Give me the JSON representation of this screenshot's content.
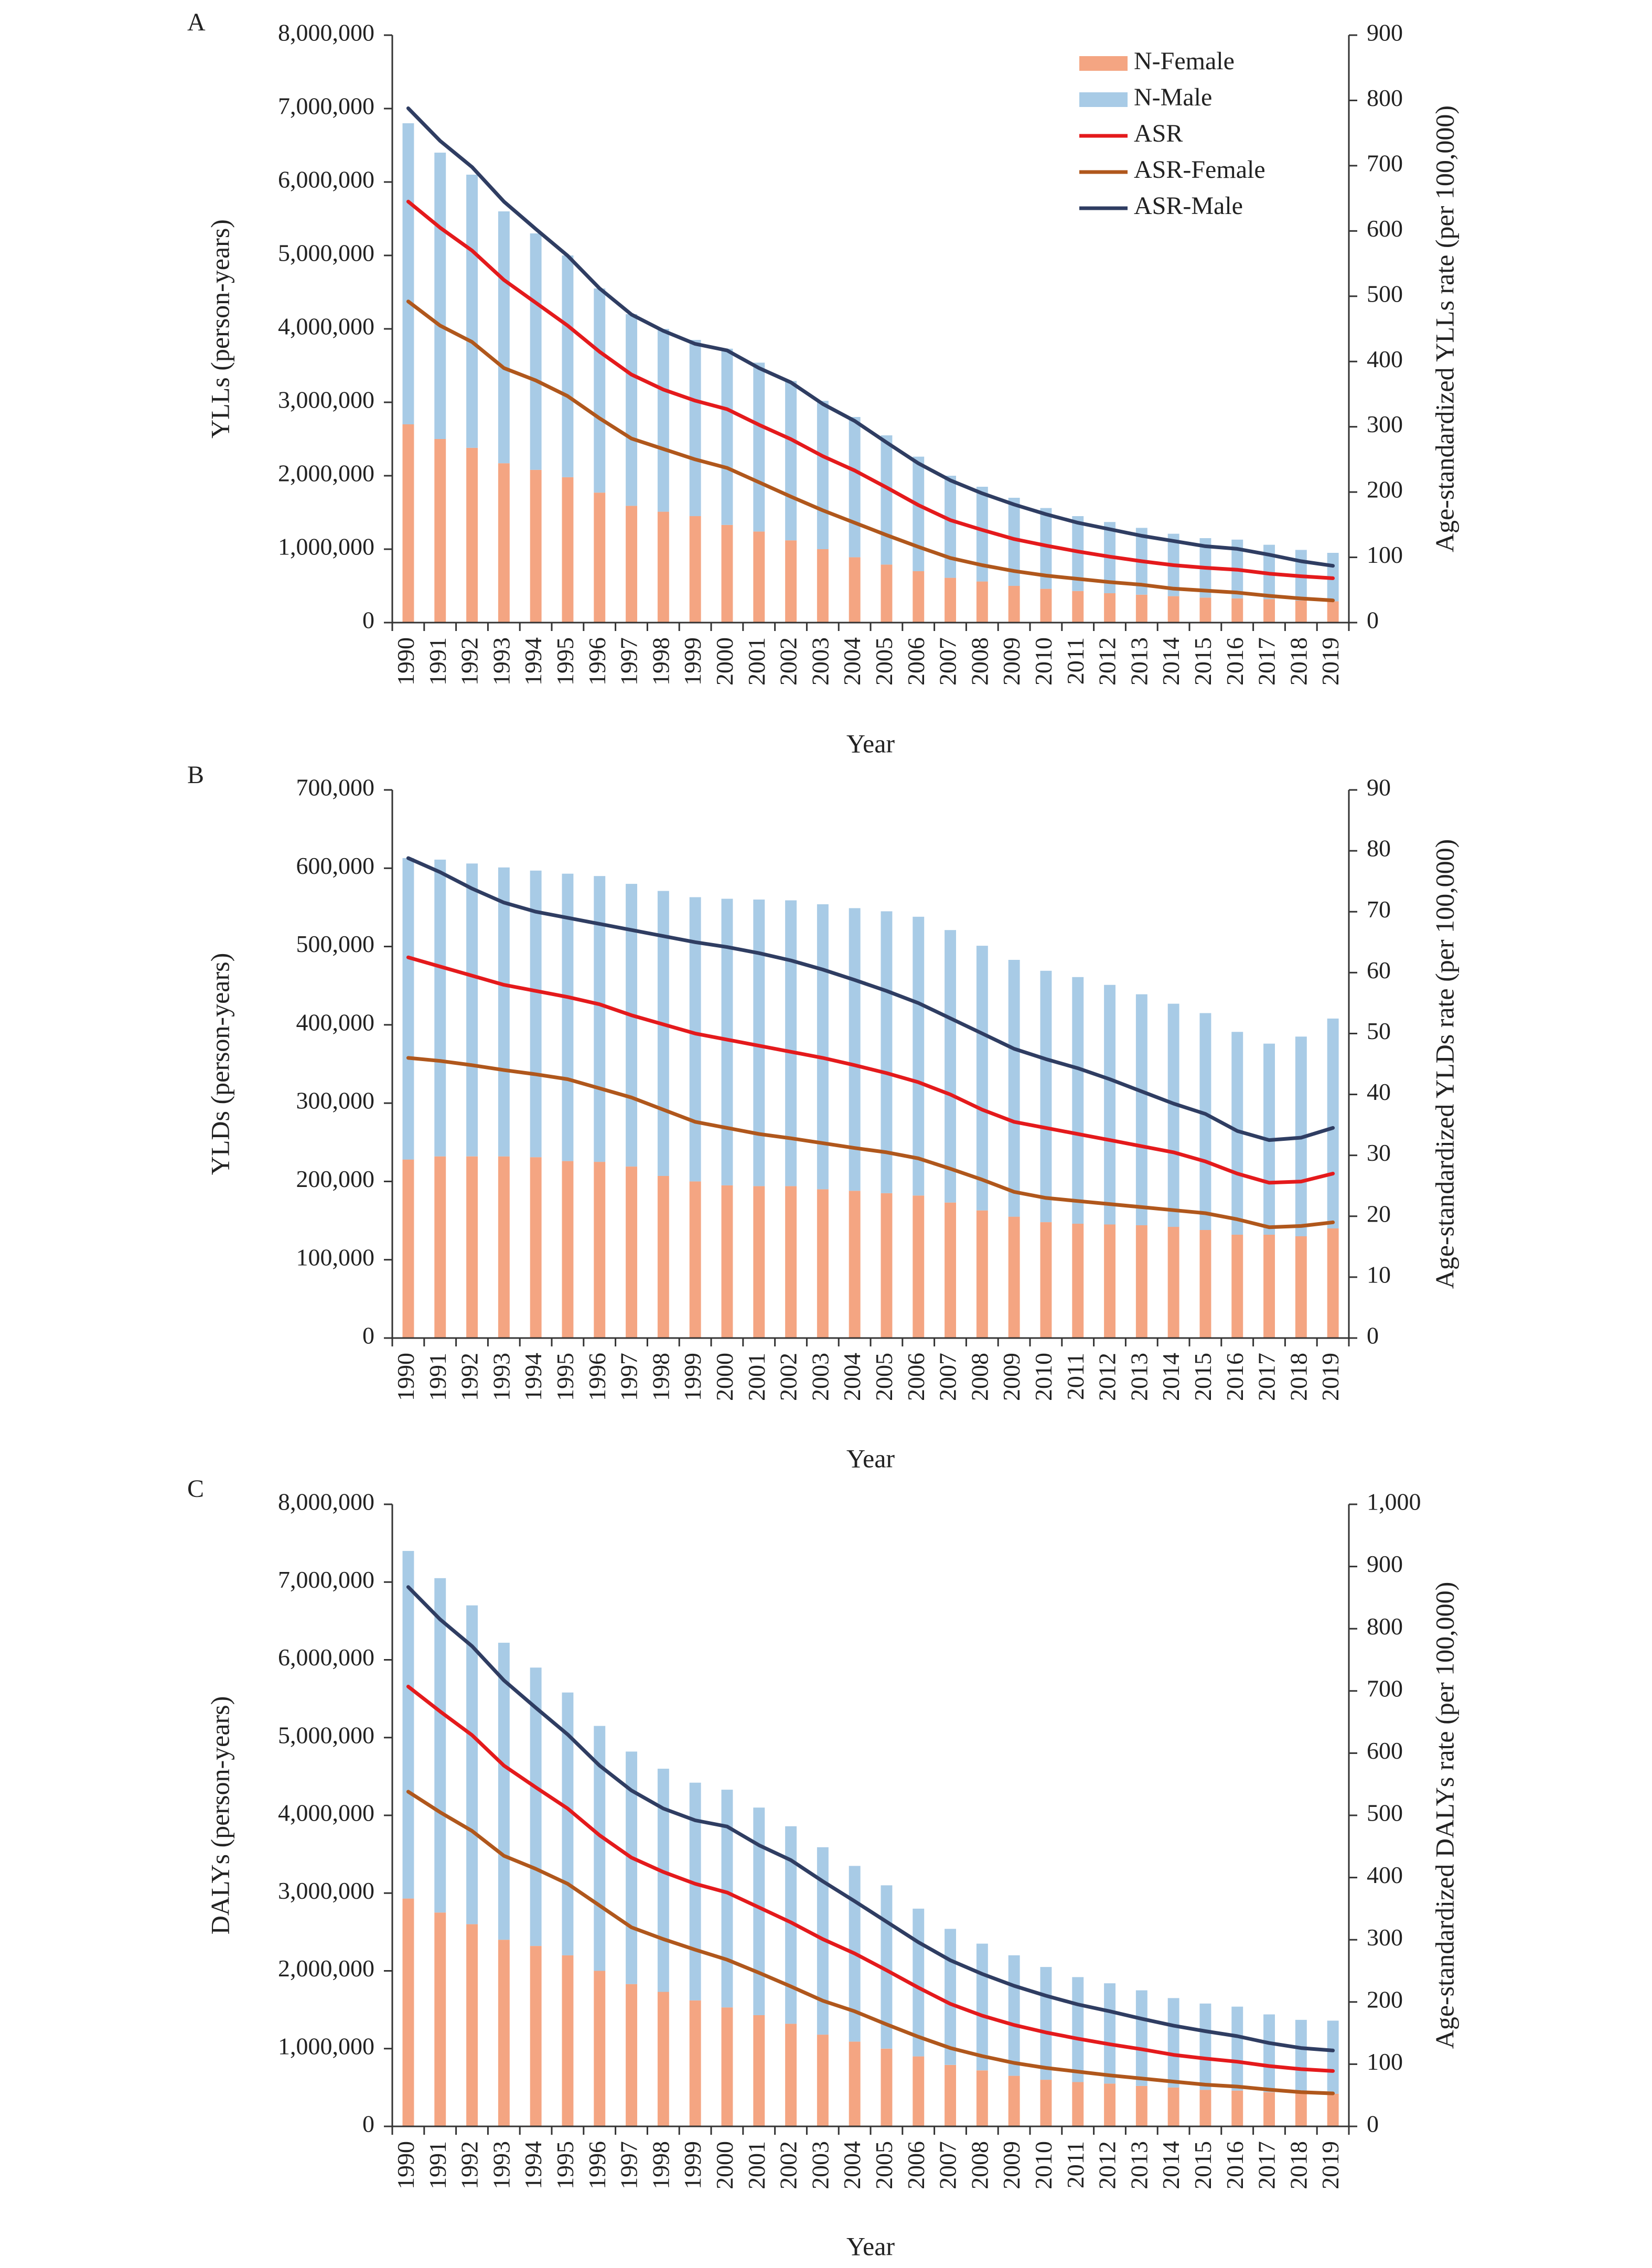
{
  "colors": {
    "female_bar": "#F4A582",
    "male_bar": "#A8CBE6",
    "asr": "#E41A1C",
    "asr_female": "#B0571C",
    "asr_male": "#2F3D62",
    "axis": "#333333",
    "text": "#222222"
  },
  "legend": {
    "position": "top-right of panel A",
    "items": [
      {
        "key": "female_bar",
        "label": "N-Female",
        "kind": "bar"
      },
      {
        "key": "male_bar",
        "label": "N-Male",
        "kind": "bar"
      },
      {
        "key": "asr",
        "label": "ASR",
        "kind": "line"
      },
      {
        "key": "asr_female",
        "label": "ASR-Female",
        "kind": "line"
      },
      {
        "key": "asr_male",
        "label": "ASR-Male",
        "kind": "line"
      }
    ]
  },
  "chart_data": [
    {
      "panel": "A",
      "type": "bar",
      "stacked": true,
      "xlabel": "Year",
      "ylabel": "YLLs (person-years)",
      "y2label": "Age-standardized YLLs rate (per 100,000)",
      "ylim": [
        0,
        8000000
      ],
      "y2lim": [
        0,
        900
      ],
      "yticks": [
        0,
        1000000,
        2000000,
        3000000,
        4000000,
        5000000,
        6000000,
        7000000,
        8000000
      ],
      "yticklabels": [
        "0",
        "1,000,000",
        "2,000,000",
        "3,000,000",
        "4,000,000",
        "5,000,000",
        "6,000,000",
        "7,000,000",
        "8,000,000"
      ],
      "y2ticks": [
        0,
        100,
        200,
        300,
        400,
        500,
        600,
        700,
        800,
        900
      ],
      "y2ticklabels": [
        "0",
        "100",
        "200",
        "300",
        "400",
        "500",
        "600",
        "700",
        "800",
        "900"
      ],
      "categories": [
        "1990",
        "1991",
        "1992",
        "1993",
        "1994",
        "1995",
        "1996",
        "1997",
        "1998",
        "1999",
        "2000",
        "2001",
        "2002",
        "2003",
        "2004",
        "2005",
        "2006",
        "2007",
        "2008",
        "2009",
        "2010",
        "2011",
        "2012",
        "2013",
        "2014",
        "2015",
        "2016",
        "2017",
        "2018",
        "2019"
      ],
      "series": [
        {
          "name": "N-Female",
          "kind": "bar",
          "color_key": "female_bar",
          "values": [
            2700000,
            2500000,
            2380000,
            2170000,
            2080000,
            1980000,
            1770000,
            1590000,
            1510000,
            1450000,
            1330000,
            1240000,
            1120000,
            1000000,
            890000,
            790000,
            700000,
            610000,
            560000,
            500000,
            460000,
            430000,
            400000,
            380000,
            360000,
            340000,
            330000,
            320000,
            300000,
            290000
          ]
        },
        {
          "name": "N-Male",
          "kind": "bar",
          "color_key": "male_bar",
          "values": [
            4100000,
            3900000,
            3720000,
            3430000,
            3220000,
            3020000,
            2780000,
            2610000,
            2490000,
            2400000,
            2400000,
            2300000,
            2170000,
            2020000,
            1910000,
            1760000,
            1560000,
            1390000,
            1290000,
            1200000,
            1100000,
            1020000,
            970000,
            910000,
            850000,
            810000,
            800000,
            740000,
            690000,
            660000
          ]
        },
        {
          "name": "ASR",
          "kind": "line",
          "axis": "y2",
          "color_key": "asr",
          "values": [
            645,
            605,
            570,
            525,
            490,
            455,
            415,
            380,
            357,
            340,
            327,
            303,
            281,
            255,
            233,
            207,
            180,
            157,
            142,
            128,
            118,
            109,
            101,
            94,
            88,
            84,
            81,
            75,
            71,
            68
          ]
        },
        {
          "name": "ASR-Female",
          "kind": "line",
          "axis": "y2",
          "color_key": "asr_female",
          "values": [
            492,
            455,
            430,
            390,
            371,
            347,
            313,
            282,
            266,
            250,
            237,
            215,
            193,
            172,
            153,
            134,
            116,
            99,
            88,
            79,
            72,
            67,
            62,
            58,
            52,
            49,
            46,
            41,
            37,
            34
          ]
        },
        {
          "name": "ASR-Male",
          "kind": "line",
          "axis": "y2",
          "color_key": "asr_male",
          "values": [
            788,
            738,
            698,
            645,
            603,
            562,
            512,
            472,
            447,
            427,
            417,
            390,
            368,
            335,
            309,
            276,
            244,
            218,
            198,
            181,
            166,
            153,
            143,
            133,
            125,
            117,
            113,
            104,
            94,
            87
          ]
        }
      ]
    },
    {
      "panel": "B",
      "type": "bar",
      "stacked": true,
      "xlabel": "Year",
      "ylabel": "YLDs (person-years)",
      "y2label": "Age-standardized YLDs rate (per 100,000)",
      "ylim": [
        0,
        700000
      ],
      "y2lim": [
        0,
        90
      ],
      "yticks": [
        0,
        100000,
        200000,
        300000,
        400000,
        500000,
        600000,
        700000
      ],
      "yticklabels": [
        "0",
        "100,000",
        "200,000",
        "300,000",
        "400,000",
        "500,000",
        "600,000",
        "700,000"
      ],
      "y2ticks": [
        0,
        10,
        20,
        30,
        40,
        50,
        60,
        70,
        80,
        90
      ],
      "y2ticklabels": [
        "0",
        "10",
        "20",
        "30",
        "40",
        "50",
        "60",
        "70",
        "80",
        "90"
      ],
      "categories": [
        "1990",
        "1991",
        "1992",
        "1993",
        "1994",
        "1995",
        "1996",
        "1997",
        "1998",
        "1999",
        "2000",
        "2001",
        "2002",
        "2003",
        "2004",
        "2005",
        "2006",
        "2007",
        "2008",
        "2009",
        "2010",
        "2011",
        "2012",
        "2013",
        "2014",
        "2015",
        "2016",
        "2017",
        "2018",
        "2019"
      ],
      "series": [
        {
          "name": "N-Female",
          "kind": "bar",
          "color_key": "female_bar",
          "values": [
            228000,
            232000,
            232000,
            232000,
            231000,
            226000,
            225000,
            219000,
            207000,
            200000,
            195000,
            194000,
            194000,
            190000,
            188000,
            185000,
            182000,
            173000,
            163000,
            155000,
            148000,
            146000,
            145000,
            144000,
            142000,
            138000,
            132000,
            132000,
            130000,
            140000
          ]
        },
        {
          "name": "N-Male",
          "kind": "bar",
          "color_key": "male_bar",
          "values": [
            385000,
            379000,
            374000,
            369000,
            366000,
            367000,
            365000,
            361000,
            364000,
            363000,
            366000,
            366000,
            365000,
            364000,
            361000,
            360000,
            356000,
            348000,
            338000,
            328000,
            321000,
            315000,
            306000,
            295000,
            285000,
            277000,
            259000,
            244000,
            255000,
            268000
          ]
        },
        {
          "name": "ASR",
          "kind": "line",
          "axis": "y2",
          "color_key": "asr",
          "values": [
            62.5,
            61,
            59.5,
            58,
            57,
            56,
            54.8,
            53,
            51.5,
            50,
            49,
            48,
            47,
            46,
            44.8,
            43.5,
            42,
            40,
            37.5,
            35.5,
            34.5,
            33.5,
            32.5,
            31.5,
            30.5,
            29,
            27,
            25.5,
            25.7,
            27
          ]
        },
        {
          "name": "ASR-Female",
          "kind": "line",
          "axis": "y2",
          "color_key": "asr_female",
          "values": [
            46,
            45.5,
            44.8,
            44,
            43.3,
            42.5,
            41,
            39.5,
            37.5,
            35.5,
            34.5,
            33.5,
            32.8,
            32,
            31.2,
            30.5,
            29.5,
            27.8,
            26,
            24,
            23,
            22.5,
            22,
            21.5,
            21,
            20.5,
            19.5,
            18.2,
            18.4,
            19
          ]
        },
        {
          "name": "ASR-Male",
          "kind": "line",
          "axis": "y2",
          "color_key": "asr_male",
          "values": [
            78.8,
            76.5,
            73.8,
            71.5,
            70,
            69,
            68,
            67,
            66,
            65,
            64.2,
            63.2,
            62,
            60.5,
            58.8,
            57,
            55,
            52.5,
            50,
            47.5,
            45.8,
            44.3,
            42.5,
            40.5,
            38.5,
            36.8,
            34,
            32.5,
            32.9,
            34.5
          ]
        }
      ]
    },
    {
      "panel": "C",
      "type": "bar",
      "stacked": true,
      "xlabel": "Year",
      "ylabel": "DALYs (person-years)",
      "y2label": "Age-standardized DALYs rate (per 100,000)",
      "ylim": [
        0,
        8000000
      ],
      "y2lim": [
        0,
        1000
      ],
      "yticks": [
        0,
        1000000,
        2000000,
        3000000,
        4000000,
        5000000,
        6000000,
        7000000,
        8000000
      ],
      "yticklabels": [
        "0",
        "1,000,000",
        "2,000,000",
        "3,000,000",
        "4,000,000",
        "5,000,000",
        "6,000,000",
        "7,000,000",
        "8,000,000"
      ],
      "y2ticks": [
        0,
        100,
        200,
        300,
        400,
        500,
        600,
        700,
        800,
        900,
        1000
      ],
      "y2ticklabels": [
        "0",
        "100",
        "200",
        "300",
        "400",
        "500",
        "600",
        "700",
        "800",
        "900",
        "1,000"
      ],
      "categories": [
        "1990",
        "1991",
        "1992",
        "1993",
        "1994",
        "1995",
        "1996",
        "1997",
        "1998",
        "1999",
        "2000",
        "2001",
        "2002",
        "2003",
        "2004",
        "2005",
        "2006",
        "2007",
        "2008",
        "2009",
        "2010",
        "2011",
        "2012",
        "2013",
        "2014",
        "2015",
        "2016",
        "2017",
        "2018",
        "2019"
      ],
      "series": [
        {
          "name": "N-Female",
          "kind": "bar",
          "color_key": "female_bar",
          "values": [
            2930000,
            2750000,
            2600000,
            2400000,
            2320000,
            2200000,
            2000000,
            1830000,
            1730000,
            1620000,
            1530000,
            1430000,
            1320000,
            1180000,
            1090000,
            1000000,
            900000,
            790000,
            720000,
            650000,
            600000,
            570000,
            550000,
            520000,
            500000,
            470000,
            460000,
            440000,
            430000,
            420000
          ]
        },
        {
          "name": "N-Male",
          "kind": "bar",
          "color_key": "male_bar",
          "values": [
            4470000,
            4300000,
            4100000,
            3820000,
            3580000,
            3380000,
            3150000,
            2990000,
            2870000,
            2800000,
            2800000,
            2670000,
            2540000,
            2410000,
            2260000,
            2100000,
            1900000,
            1750000,
            1630000,
            1550000,
            1450000,
            1350000,
            1290000,
            1230000,
            1150000,
            1110000,
            1080000,
            1000000,
            940000,
            940000
          ]
        },
        {
          "name": "ASR",
          "kind": "line",
          "axis": "y2",
          "color_key": "asr",
          "values": [
            707,
            667,
            629,
            580,
            545,
            511,
            468,
            432,
            409,
            390,
            376,
            352,
            328,
            301,
            278,
            251,
            223,
            197,
            178,
            163,
            151,
            141,
            132,
            124,
            115,
            109,
            104,
            97,
            92,
            89
          ]
        },
        {
          "name": "ASR-Female",
          "kind": "line",
          "axis": "y2",
          "color_key": "asr_female",
          "values": [
            538,
            505,
            475,
            435,
            414,
            390,
            355,
            320,
            301,
            284,
            268,
            247,
            225,
            202,
            185,
            164,
            144,
            126,
            113,
            102,
            94,
            88,
            82,
            77,
            72,
            67,
            64,
            59,
            55,
            53
          ]
        },
        {
          "name": "ASR-Male",
          "kind": "line",
          "axis": "y2",
          "color_key": "asr_male",
          "values": [
            867,
            815,
            772,
            717,
            673,
            630,
            580,
            540,
            511,
            492,
            482,
            452,
            428,
            394,
            362,
            329,
            296,
            267,
            245,
            226,
            210,
            196,
            185,
            173,
            162,
            153,
            145,
            134,
            126,
            122
          ]
        }
      ]
    }
  ]
}
